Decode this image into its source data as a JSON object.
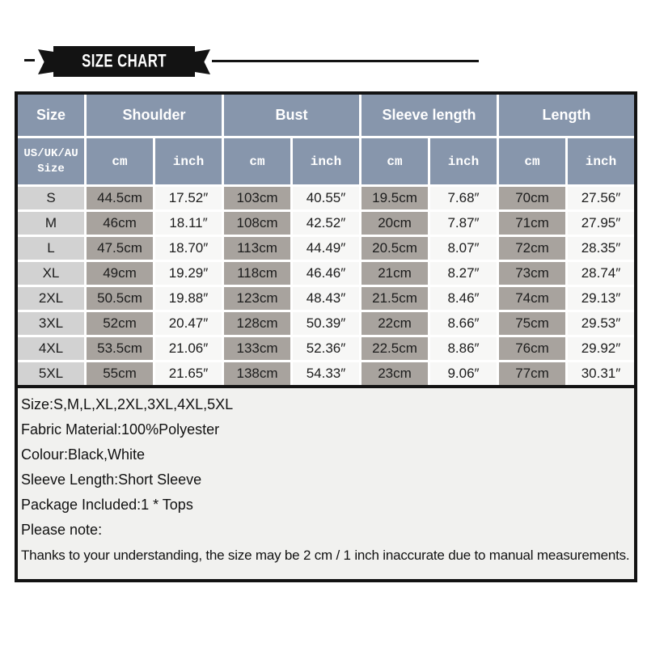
{
  "banner": {
    "title": "SIZE CHART"
  },
  "table": {
    "group_headers": [
      "Size",
      "Shoulder",
      "Bust",
      "Sleeve length",
      "Length"
    ],
    "corner": {
      "line1": "US/UK/AU",
      "line2": "Size"
    },
    "units": [
      "cm",
      "inch",
      "cm",
      "inch",
      "cm",
      "inch",
      "cm",
      "inch"
    ],
    "rows": [
      {
        "size": "S",
        "cells": [
          "44.5cm",
          "17.52″",
          "103cm",
          "40.55″",
          "19.5cm",
          "7.68″",
          "70cm",
          "27.56″"
        ]
      },
      {
        "size": "M",
        "cells": [
          "46cm",
          "18.11″",
          "108cm",
          "42.52″",
          "20cm",
          "7.87″",
          "71cm",
          "27.95″"
        ]
      },
      {
        "size": "L",
        "cells": [
          "47.5cm",
          "18.70″",
          "113cm",
          "44.49″",
          "20.5cm",
          "8.07″",
          "72cm",
          "28.35″"
        ]
      },
      {
        "size": "XL",
        "cells": [
          "49cm",
          "19.29″",
          "118cm",
          "46.46″",
          "21cm",
          "8.27″",
          "73cm",
          "28.74″"
        ]
      },
      {
        "size": "2XL",
        "cells": [
          "50.5cm",
          "19.88″",
          "123cm",
          "48.43″",
          "21.5cm",
          "8.46″",
          "74cm",
          "29.13″"
        ]
      },
      {
        "size": "3XL",
        "cells": [
          "52cm",
          "20.47″",
          "128cm",
          "50.39″",
          "22cm",
          "8.66″",
          "75cm",
          "29.53″"
        ]
      },
      {
        "size": "4XL",
        "cells": [
          "53.5cm",
          "21.06″",
          "133cm",
          "52.36″",
          "22.5cm",
          "8.86″",
          "76cm",
          "29.92″"
        ]
      },
      {
        "size": "5XL",
        "cells": [
          "55cm",
          "21.65″",
          "138cm",
          "54.33″",
          "23cm",
          "9.06″",
          "77cm",
          "30.31″"
        ]
      }
    ]
  },
  "details": {
    "size_line": "Size:S,M,L,XL,2XL,3XL,4XL,5XL",
    "fabric_line": "Fabric Material:100%Polyester",
    "colour_line": "Colour:Black,White",
    "sleeve_line": "Sleeve Length:Short Sleeve",
    "package_line": "Package Included:1 * Tops",
    "note_label": "Please note:",
    "note_text": "Thanks to your understanding, the size may be 2 cm / 1 inch inaccurate due to manual measurements."
  },
  "colors": {
    "header-bg": "#8796ac",
    "cm-cell-bg": "#a8a39e",
    "inch-cell-bg": "#f7f7f6",
    "size-cell-bg": "#d2d2d2",
    "details-bg": "#f1f1ef",
    "border-black": "#131313",
    "text-dark": "#1c1c1c"
  }
}
